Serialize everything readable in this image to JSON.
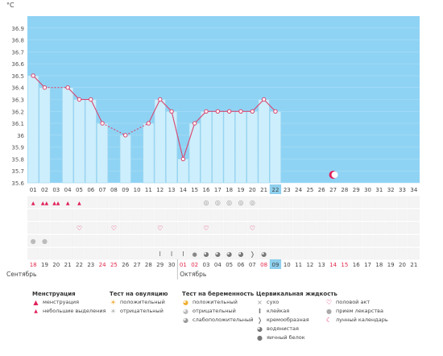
{
  "unit_label": "°C",
  "chart_data": {
    "type": "bar",
    "title": "",
    "ylabel": "°C",
    "ylim": [
      35.6,
      37.0
    ],
    "yticks": [
      "36.9",
      "36.8",
      "36.7",
      "36.6",
      "36.5",
      "36.4",
      "36.3",
      "36.2",
      "36.1",
      "36",
      "35.9",
      "35.8",
      "35.7",
      "35.6"
    ],
    "day_labels": [
      "01",
      "02",
      "03",
      "04",
      "05",
      "06",
      "07",
      "08",
      "09",
      "10",
      "11",
      "12",
      "13",
      "14",
      "15",
      "16",
      "17",
      "18",
      "19",
      "20",
      "21",
      "22",
      "23",
      "24",
      "25",
      "26",
      "27",
      "28",
      "29",
      "30",
      "31",
      "32",
      "33",
      "34"
    ],
    "values": [
      36.5,
      36.4,
      null,
      36.4,
      36.3,
      36.3,
      36.1,
      null,
      36.0,
      null,
      36.1,
      36.3,
      36.2,
      35.8,
      36.1,
      36.2,
      36.2,
      36.2,
      36.2,
      36.2,
      36.3,
      36.2
    ],
    "current_day_index": 21,
    "lunar_calendar_day_index": 26,
    "grid": true
  },
  "calendar": {
    "dates": [
      "18",
      "19",
      "20",
      "21",
      "22",
      "23",
      "24",
      "25",
      "26",
      "27",
      "28",
      "29",
      "30",
      "01",
      "02",
      "03",
      "04",
      "05",
      "06",
      "07",
      "08",
      "09",
      "10",
      "11",
      "12",
      "13",
      "14",
      "15",
      "16",
      "17",
      "18",
      "19",
      "20",
      "21"
    ],
    "red_date_indices": [
      0,
      6,
      7,
      13,
      14,
      20,
      26,
      27
    ],
    "current_index": 21,
    "month_left": "Сентябрь",
    "month_right": "Октябрь"
  },
  "marks": {
    "menstruation_heavy": [
      1,
      2
    ],
    "menstruation_light": [
      0,
      3,
      4
    ],
    "ovulation_negative": [
      15,
      16,
      17,
      18,
      19
    ],
    "intercourse": [
      4,
      7,
      11,
      15,
      19
    ],
    "medication": [
      0,
      1
    ],
    "mucus_sticky": [
      11,
      12,
      13
    ],
    "mucus_eggwhite": [
      14
    ],
    "mucus_watery": [
      15,
      16,
      17,
      18,
      20
    ],
    "mucus_creamy": [
      19
    ]
  },
  "legend": {
    "menstruation": {
      "title": "Менструация",
      "items": [
        "менструация",
        "небольшие выделения"
      ]
    },
    "ovulation": {
      "title": "Тест на овуляцию",
      "items": [
        "положительный",
        "отрицательный"
      ]
    },
    "pregnancy": {
      "title": "Тест на беременность",
      "items": [
        "положительный",
        "отрицательный",
        "слабоположительный"
      ]
    },
    "mucus": {
      "title": "Цервикальная жидкость",
      "items": [
        "сухо",
        "клейкая",
        "кремообразная",
        "водянистая",
        "яичный белок"
      ]
    },
    "other": {
      "items": [
        "половой акт",
        "прием лекарства",
        "лунный календарь"
      ]
    }
  },
  "colors": {
    "plot_bg": "#8fd3f4",
    "bar_fill": "#cdeefc",
    "bar_stroke": "#9ed6ef",
    "line": "#d9446e",
    "red_text": "#e0284a",
    "highlight": "#8ed0ee",
    "marker_pink": "#e0205a"
  },
  "icons": {
    "menstruation": "drop-icon",
    "ovulation": "sun-icon",
    "pregnancy": "cup-icon",
    "intercourse": "heart-icon",
    "medication": "pill-icon",
    "lunar": "moon-icon"
  }
}
